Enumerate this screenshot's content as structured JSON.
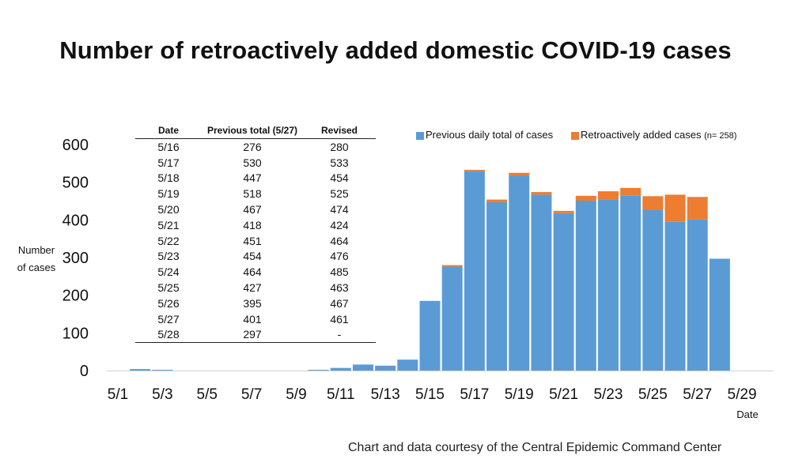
{
  "title": "Number of retroactively added domestic COVID-19 cases",
  "footer": "Chart and data courtesy of the Central Epidemic Command Center",
  "chart_data": {
    "type": "bar",
    "stacked": true,
    "title": "Number of retroactively added domestic COVID-19 cases",
    "ylabel_lines": [
      "Number",
      "of cases"
    ],
    "xlabel": "Date",
    "ylim": [
      0,
      600
    ],
    "yticks": [
      0,
      100,
      200,
      300,
      400,
      500,
      600
    ],
    "xtick_labels": [
      "5/1",
      "5/3",
      "5/5",
      "5/7",
      "5/9",
      "5/11",
      "5/13",
      "5/15",
      "5/17",
      "5/19",
      "5/21",
      "5/23",
      "5/25",
      "5/27",
      "5/29"
    ],
    "categories": [
      "5/1",
      "5/2",
      "5/3",
      "5/4",
      "5/5",
      "5/6",
      "5/7",
      "5/8",
      "5/9",
      "5/10",
      "5/11",
      "5/12",
      "5/13",
      "5/14",
      "5/15",
      "5/16",
      "5/17",
      "5/18",
      "5/19",
      "5/20",
      "5/21",
      "5/22",
      "5/23",
      "5/24",
      "5/25",
      "5/26",
      "5/27",
      "5/28"
    ],
    "series": [
      {
        "name": "Previous daily total of cases",
        "color": "#5B9BD5",
        "values": [
          0,
          4,
          2,
          0,
          0,
          0,
          0,
          0,
          0,
          2,
          7,
          16,
          13,
          29,
          185,
          276,
          530,
          447,
          518,
          467,
          418,
          451,
          454,
          464,
          427,
          395,
          401,
          297
        ]
      },
      {
        "name": "Retroactively added cases",
        "name_note": "(n= 258)",
        "color": "#ED7D31",
        "values": [
          0,
          0,
          0,
          0,
          0,
          0,
          0,
          0,
          0,
          0,
          0,
          0,
          0,
          0,
          0,
          4,
          3,
          7,
          7,
          7,
          6,
          13,
          22,
          21,
          36,
          72,
          60,
          0
        ]
      }
    ],
    "legend_position": "top-right",
    "grid": false,
    "table": {
      "headers": [
        "Date",
        "Previous total  (5/27)",
        "Revised"
      ],
      "rows": [
        [
          "5/16",
          "276",
          "280"
        ],
        [
          "5/17",
          "530",
          "533"
        ],
        [
          "5/18",
          "447",
          "454"
        ],
        [
          "5/19",
          "518",
          "525"
        ],
        [
          "5/20",
          "467",
          "474"
        ],
        [
          "5/21",
          "418",
          "424"
        ],
        [
          "5/22",
          "451",
          "464"
        ],
        [
          "5/23",
          "454",
          "476"
        ],
        [
          "5/24",
          "464",
          "485"
        ],
        [
          "5/25",
          "427",
          "463"
        ],
        [
          "5/26",
          "395",
          "467"
        ],
        [
          "5/27",
          "401",
          "461"
        ],
        [
          "5/28",
          "297",
          "-"
        ]
      ]
    }
  }
}
